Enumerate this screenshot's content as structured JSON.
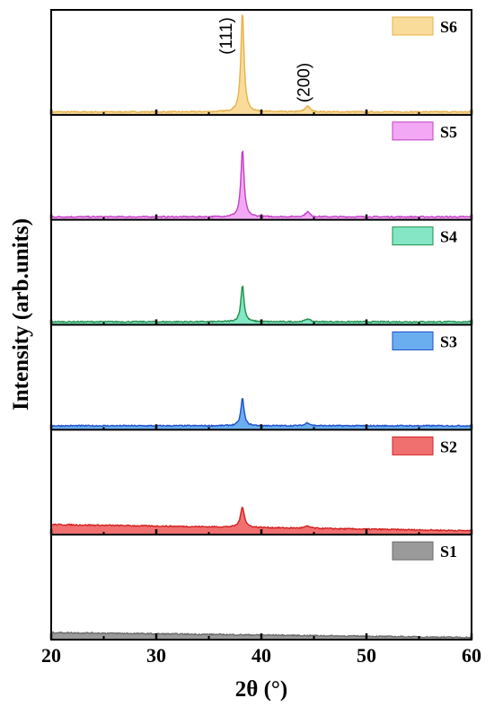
{
  "chart_data": {
    "type": "line",
    "xlabel": "2θ (°)",
    "ylabel": "Intensity (arb.units)",
    "xlim": [
      20,
      60
    ],
    "x_ticks": [
      20,
      30,
      40,
      50,
      60
    ],
    "x_tick_labels": [
      "20",
      "30",
      "40",
      "50",
      "60"
    ],
    "minor_x_ticks": [
      25,
      35,
      45,
      55
    ],
    "grid": false,
    "legend_placement": "top-right of each panel",
    "annotations": [
      {
        "text": "(111)",
        "x": 38.2
      },
      {
        "text": "(200)",
        "x": 44.4
      }
    ],
    "series": [
      {
        "name": "S6",
        "color": "#e8b04a",
        "fill": "#f9dc9a",
        "peaks": [
          {
            "x": 38.2,
            "height": 0.98,
            "width": 0.18
          },
          {
            "x": 44.4,
            "height": 0.06,
            "width": 0.25
          }
        ],
        "baseline": 0.02,
        "background_slope": 0.0
      },
      {
        "name": "S5",
        "color": "#c23fc2",
        "fill": "#f3a8f5",
        "peaks": [
          {
            "x": 38.2,
            "height": 0.66,
            "width": 0.18
          },
          {
            "x": 44.4,
            "height": 0.05,
            "width": 0.25
          }
        ],
        "baseline": 0.02,
        "background_slope": 0.0
      },
      {
        "name": "S4",
        "color": "#1f8f4a",
        "fill": "#84e6c4",
        "peaks": [
          {
            "x": 38.2,
            "height": 0.36,
            "width": 0.18
          },
          {
            "x": 44.4,
            "height": 0.03,
            "width": 0.25
          }
        ],
        "baseline": 0.02,
        "background_slope": 0.0
      },
      {
        "name": "S3",
        "color": "#1f4fc8",
        "fill": "#6aaef0",
        "peaks": [
          {
            "x": 38.2,
            "height": 0.27,
            "width": 0.18
          },
          {
            "x": 44.4,
            "height": 0.03,
            "width": 0.25
          }
        ],
        "baseline": 0.03,
        "background_slope": 0.0
      },
      {
        "name": "S2",
        "color": "#d42020",
        "fill": "#f07070",
        "peaks": [
          {
            "x": 38.2,
            "height": 0.2,
            "width": 0.22
          },
          {
            "x": 44.4,
            "height": 0.02,
            "width": 0.3
          }
        ],
        "baseline": 0.09,
        "background_slope": -0.0015
      },
      {
        "name": "S1",
        "color": "#6a6a6a",
        "fill": "#9a9a9a",
        "peaks": [],
        "baseline": 0.06,
        "background_slope": -0.0012
      }
    ]
  }
}
